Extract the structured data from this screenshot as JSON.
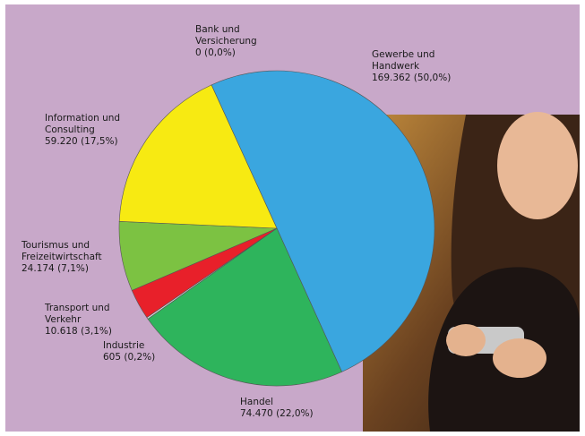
{
  "chart_data": {
    "type": "pie",
    "categories": [
      "Bank und\nVersicherung",
      "Gewerbe und\nHandwerk",
      "Handel",
      "Industrie",
      "Transport und\nVerkehr",
      "Tourismus und\nFreizeitwirtschaft",
      "Information und\nConsulting"
    ],
    "values": [
      0,
      169362,
      74470,
      605,
      10618,
      24174,
      59220
    ],
    "value_labels": [
      "0 (0,0%)",
      "169.362 (50,0%)",
      "74.470 (22,0%)",
      "605 (0,2%)",
      "10.618 (3,1%)",
      "24.174 (7,1%)",
      "59.220 (17,5%)"
    ],
    "colors": [
      "#cccccc",
      "#3aa6df",
      "#2eb45c",
      "#d9d9d9",
      "#e8202a",
      "#7cc242",
      "#f7ea12"
    ]
  }
}
